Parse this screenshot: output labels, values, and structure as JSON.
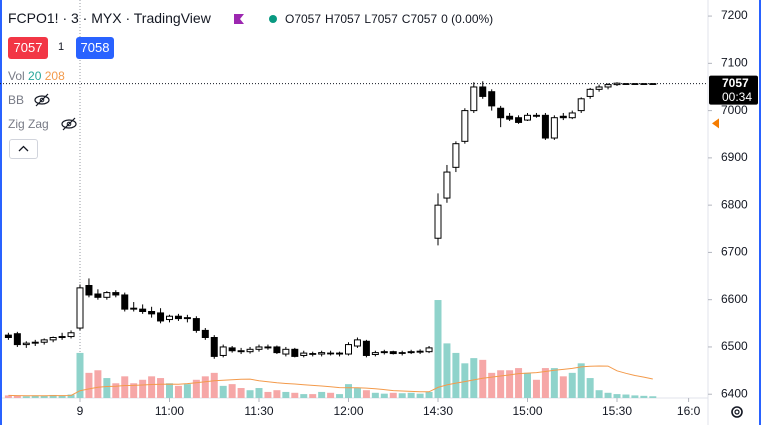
{
  "header": {
    "title": "FCPO1! · 3 · MYX · TradingView",
    "ohlc": [
      "O7057",
      "H7057",
      "L7057",
      "C7057"
    ],
    "change": "0 (0.00%)",
    "bid": "7057",
    "spread": "1",
    "ask": "7058"
  },
  "indicators": [
    {
      "name": "Vol",
      "values": [
        "20",
        "208"
      ]
    },
    {
      "name": "BB"
    },
    {
      "name": "Zig Zag"
    }
  ],
  "chart_data": {
    "type": "candlestick",
    "open": [
      6525,
      6528,
      6505,
      6508,
      6510,
      6515,
      6520,
      6522,
      6540,
      6630,
      6612,
      6605,
      6615,
      6610,
      6582,
      6580,
      6575,
      6572,
      6558,
      6565,
      6560,
      6560,
      6535,
      6520,
      6482,
      6498,
      6492,
      6490,
      6495,
      6500,
      6500,
      6485,
      6495,
      6482,
      6486,
      6485,
      6487,
      6485,
      6485,
      6502,
      6512,
      6484,
      6488,
      6490,
      6487,
      6488,
      6489,
      6490,
      6730,
      6815,
      6880,
      6935,
      7000,
      7050,
      7040,
      7005,
      6988,
      6985,
      6980,
      6990,
      6990,
      6942,
      6988,
      6985,
      7000,
      7030,
      7045,
      7050,
      7055,
      7057,
      7057,
      7057,
      7057
    ],
    "high": [
      6530,
      6532,
      6512,
      6515,
      6518,
      6522,
      6530,
      6535,
      6632,
      6645,
      6622,
      6618,
      6620,
      6615,
      6595,
      6590,
      6585,
      6582,
      6568,
      6570,
      6568,
      6565,
      6540,
      6525,
      6505,
      6502,
      6498,
      6500,
      6505,
      6505,
      6503,
      6500,
      6498,
      6492,
      6490,
      6492,
      6492,
      6490,
      6510,
      6520,
      6515,
      6492,
      6494,
      6492,
      6492,
      6494,
      6495,
      6502,
      6825,
      6885,
      6935,
      7005,
      7060,
      7062,
      7045,
      7010,
      6995,
      6990,
      6995,
      6995,
      6995,
      6990,
      6995,
      7000,
      7028,
      7048,
      7055,
      7058,
      7060,
      7058,
      7058,
      7058,
      7058
    ],
    "low": [
      6515,
      6500,
      6498,
      6502,
      6505,
      6510,
      6515,
      6518,
      6535,
      6605,
      6600,
      6600,
      6605,
      6575,
      6575,
      6570,
      6562,
      6550,
      6552,
      6555,
      6552,
      6530,
      6515,
      6475,
      6478,
      6488,
      6485,
      6486,
      6490,
      6494,
      6485,
      6480,
      6478,
      6478,
      6480,
      6480,
      6482,
      6480,
      6482,
      6498,
      6478,
      6480,
      6484,
      6484,
      6482,
      6485,
      6485,
      6487,
      6715,
      6805,
      6870,
      6930,
      6995,
      7025,
      7000,
      6965,
      6978,
      6972,
      6978,
      6985,
      6938,
      6938,
      6980,
      6982,
      6995,
      7025,
      7040,
      7045,
      7052,
      7056,
      7056,
      7056,
      7056
    ],
    "close": [
      6520,
      6505,
      6508,
      6510,
      6515,
      6520,
      6522,
      6530,
      6625,
      6610,
      6605,
      6615,
      6610,
      6580,
      6580,
      6575,
      6570,
      6555,
      6565,
      6560,
      6562,
      6535,
      6520,
      6480,
      6500,
      6492,
      6490,
      6495,
      6500,
      6498,
      6488,
      6495,
      6480,
      6487,
      6485,
      6488,
      6486,
      6487,
      6505,
      6515,
      6482,
      6488,
      6490,
      6486,
      6488,
      6490,
      6491,
      6498,
      6800,
      6870,
      6930,
      7000,
      7050,
      7030,
      7010,
      6985,
      6982,
      6975,
      6990,
      6988,
      6942,
      6985,
      6985,
      6995,
      7025,
      7045,
      7050,
      7055,
      7058,
      7057,
      7057,
      7057,
      7057
    ],
    "volume": [
      30,
      25,
      20,
      30,
      25,
      35,
      30,
      40,
      520,
      290,
      320,
      230,
      170,
      250,
      170,
      210,
      250,
      230,
      170,
      140,
      160,
      210,
      250,
      290,
      140,
      160,
      115,
      90,
      115,
      70,
      90,
      70,
      60,
      45,
      45,
      70,
      60,
      45,
      160,
      115,
      90,
      60,
      50,
      60,
      55,
      60,
      50,
      70,
      1130,
      630,
      520,
      400,
      460,
      440,
      290,
      320,
      320,
      345,
      290,
      210,
      345,
      345,
      250,
      290,
      400,
      230,
      90,
      60,
      45,
      40,
      30,
      25,
      20
    ],
    "ma_length": 20,
    "ylim": [
      6392,
      7234
    ],
    "yticks": [
      6400,
      6500,
      6600,
      6700,
      6800,
      6900,
      7000,
      7100,
      7200
    ],
    "xticks": [
      {
        "value": 8,
        "label": "9"
      },
      {
        "value": 18,
        "label": "11:00"
      },
      {
        "value": 28,
        "label": "11:30"
      },
      {
        "value": 38,
        "label": "12:00"
      },
      {
        "value": 48,
        "label": "14:30"
      },
      {
        "value": 58,
        "label": "15:00"
      },
      {
        "value": 68,
        "label": "15:30"
      },
      {
        "value": 76,
        "label": "16:0"
      }
    ],
    "last_price": 7057,
    "countdown": "00:34",
    "alert_price": 6973,
    "colors": {
      "up_body": "#ffffff",
      "down_body": "#000000",
      "border": "#000000",
      "up_volume": "#8fd3cb",
      "down_volume": "#f6a7a7",
      "ma": "#f39a4b",
      "price_label": "#000000",
      "alert": "#f57c00"
    }
  }
}
